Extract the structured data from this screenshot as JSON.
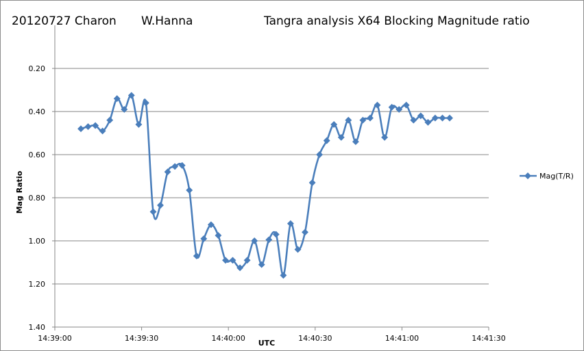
{
  "header": {
    "date_object": "20120727  Charon",
    "observer": "W.Hanna",
    "analysis": "Tangra analysis X64 Blocking  Magnitude ratio"
  },
  "chart_data": {
    "type": "line",
    "xlabel": "UTC",
    "ylabel": "Mag Ratio",
    "ylim": [
      0.0,
      1.4
    ],
    "y_inverted": true,
    "y_ticks": [
      "0.20",
      "0.40",
      "0.60",
      "0.80",
      "1.00",
      "1.20",
      "1.40"
    ],
    "x_range_seconds": [
      0,
      150
    ],
    "x_ticks": [
      "14:39:00",
      "14:39:30",
      "14:40:00",
      "14:40:30",
      "14:41:00",
      "14:41:30"
    ],
    "grid": "horizontal",
    "legend_position": "right",
    "series": [
      {
        "name": "Mag(T/R)",
        "color": "#4a7ebb",
        "x": [
          "14:39:09",
          "14:39:11.5",
          "14:39:14",
          "14:39:16.5",
          "14:39:19",
          "14:39:21.5",
          "14:39:24",
          "14:39:26.5",
          "14:39:29",
          "14:39:31.5",
          "14:39:34",
          "14:39:36.5",
          "14:39:39",
          "14:39:41.5",
          "14:39:44",
          "14:39:46.5",
          "14:39:49",
          "14:39:51.5",
          "14:39:54",
          "14:39:56.5",
          "14:39:59",
          "14:40:01.5",
          "14:40:04",
          "14:40:06.5",
          "14:40:09",
          "14:40:11.5",
          "14:40:14",
          "14:40:16.5",
          "14:40:19",
          "14:40:21.5",
          "14:40:24",
          "14:40:26.5",
          "14:40:29",
          "14:40:31.5",
          "14:40:34",
          "14:40:36.5",
          "14:40:39",
          "14:40:41.5",
          "14:40:44",
          "14:40:46.5",
          "14:40:49",
          "14:40:51.5",
          "14:40:54",
          "14:40:56.5",
          "14:40:59",
          "14:41:01.5",
          "14:41:04",
          "14:41:06.5",
          "14:41:09",
          "14:41:11.5",
          "14:41:14",
          "14:41:16.5"
        ],
        "values": [
          0.48,
          0.47,
          0.465,
          0.49,
          0.44,
          0.34,
          0.39,
          0.325,
          0.46,
          0.36,
          0.865,
          0.835,
          0.68,
          0.655,
          0.65,
          0.765,
          1.07,
          0.99,
          0.925,
          0.975,
          1.09,
          1.09,
          1.125,
          1.09,
          1.0,
          1.11,
          0.995,
          0.97,
          1.16,
          0.92,
          1.04,
          0.96,
          0.73,
          0.6,
          0.535,
          0.46,
          0.52,
          0.44,
          0.54,
          0.44,
          0.43,
          0.37,
          0.52,
          0.38,
          0.39,
          0.37,
          0.44,
          0.42,
          0.45,
          0.43,
          0.43,
          0.43
        ]
      }
    ]
  }
}
